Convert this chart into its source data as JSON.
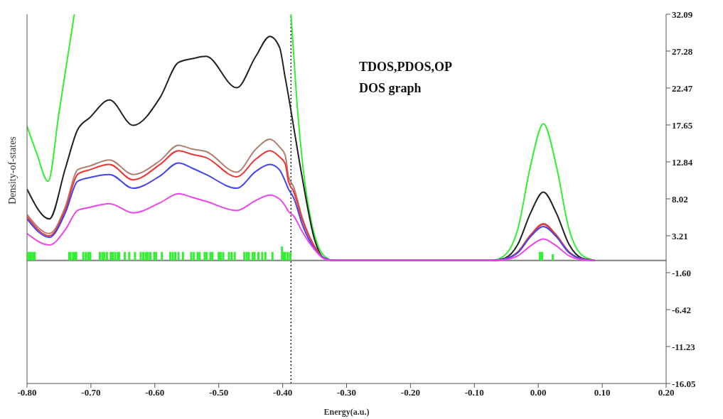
{
  "chart_data": {
    "type": "line",
    "title": "TDOS,PDOS,OP",
    "subtitle": "DOS graph",
    "xlabel": "Energy(a.u.)",
    "ylabel": "Density-of-states",
    "x": [
      -0.8,
      -0.765,
      -0.74,
      -0.721,
      -0.702,
      -0.671,
      -0.634,
      -0.592,
      -0.563,
      -0.541,
      -0.52,
      -0.472,
      -0.442,
      -0.42,
      -0.405,
      -0.396,
      -0.391,
      -0.383,
      -0.369,
      -0.35,
      -0.335,
      -0.32,
      -0.3,
      -0.072,
      -0.052,
      -0.032,
      -0.012,
      0.008,
      0.028,
      0.048,
      0.068,
      0.088
    ],
    "series": [
      {
        "color": "#33ee33",
        "x": [
          -0.8,
          -0.785,
          -0.767,
          -0.75,
          -0.726,
          -0.55,
          -0.387,
          -0.378,
          -0.368,
          -0.355,
          -0.345,
          -0.335,
          -0.32,
          -0.3,
          -0.072,
          -0.052,
          -0.032,
          -0.012,
          0.008,
          0.028,
          0.048,
          0.068,
          0.088
        ],
        "values": [
          17.5,
          14.0,
          10.3,
          19.2,
          32.09,
          null,
          32.09,
          21.0,
          12.0,
          5.0,
          2.0,
          0.6,
          0,
          0,
          0,
          0.7,
          4.1,
          12.4,
          17.8,
          12.4,
          4.1,
          0.7,
          0
        ]
      },
      {
        "color": "#222222",
        "values": [
          9.3,
          5.4,
          12.0,
          17.0,
          18.6,
          20.9,
          17.6,
          21.2,
          25.8,
          26.3,
          26.6,
          22.5,
          26.6,
          29.2,
          27.8,
          23.8,
          21.5,
          17.5,
          10.6,
          2.7,
          0.3,
          0,
          0,
          0,
          0.3,
          2.1,
          6.2,
          8.9,
          6.2,
          2.1,
          0.3,
          0
        ]
      },
      {
        "color": "#b08070",
        "values": [
          6.0,
          3.5,
          7.0,
          11.8,
          12.3,
          13.1,
          11.2,
          13.0,
          15.0,
          14.5,
          14.2,
          11.5,
          14.5,
          15.8,
          14.8,
          13.7,
          11.0,
          9.6,
          5.5,
          1.8,
          0.3,
          0,
          0,
          0,
          0.2,
          1.1,
          3.3,
          4.8,
          3.3,
          1.1,
          0.2,
          0
        ]
      },
      {
        "color": "#ee3333",
        "values": [
          5.7,
          3.2,
          6.6,
          11.2,
          11.8,
          12.5,
          10.5,
          12.5,
          14.3,
          13.8,
          13.4,
          10.9,
          13.2,
          14.3,
          13.5,
          12.6,
          10.3,
          9.0,
          5.2,
          1.8,
          0.3,
          0,
          0,
          0,
          0.2,
          1.1,
          3.3,
          4.7,
          3.3,
          1.1,
          0.2,
          0
        ]
      },
      {
        "color": "#4444ee",
        "values": [
          5.4,
          3.0,
          6.2,
          10.3,
          10.8,
          11.2,
          9.4,
          11.0,
          12.7,
          12.0,
          11.2,
          9.4,
          11.6,
          12.5,
          11.8,
          10.3,
          9.3,
          8.2,
          4.6,
          1.5,
          0.3,
          0,
          0,
          0,
          0.2,
          1.0,
          3.1,
          4.4,
          3.1,
          1.0,
          0.2,
          0
        ]
      },
      {
        "color": "#ee44ee",
        "values": [
          3.5,
          2.0,
          4.0,
          6.5,
          6.9,
          7.4,
          6.2,
          7.5,
          8.7,
          8.2,
          7.7,
          6.5,
          7.8,
          8.5,
          8.0,
          7.1,
          6.4,
          5.8,
          3.7,
          1.4,
          0.2,
          0,
          0,
          0,
          0.1,
          0.6,
          1.9,
          2.8,
          1.9,
          0.6,
          0.1,
          0
        ]
      },
      {
        "type": "bar",
        "color": "#33ee33",
        "x": [
          -0.799,
          -0.796,
          -0.793,
          -0.79,
          -0.788,
          -0.734,
          -0.732,
          -0.728,
          -0.725,
          -0.723,
          -0.712,
          -0.708,
          -0.704,
          -0.701,
          -0.686,
          -0.682,
          -0.679,
          -0.675,
          -0.669,
          -0.666,
          -0.662,
          -0.658,
          -0.656,
          -0.647,
          -0.64,
          -0.631,
          -0.622,
          -0.618,
          -0.614,
          -0.611,
          -0.607,
          -0.601,
          -0.598,
          -0.589,
          -0.576,
          -0.572,
          -0.568,
          -0.563,
          -0.556,
          -0.543,
          -0.539,
          -0.533,
          -0.53,
          -0.522,
          -0.519,
          -0.513,
          -0.51,
          -0.5,
          -0.497,
          -0.493,
          -0.484,
          -0.48,
          -0.475,
          -0.46,
          -0.456,
          -0.453,
          -0.447,
          -0.444,
          -0.438,
          -0.432,
          -0.427,
          -0.416,
          -0.401,
          -0.399,
          -0.396,
          -0.392,
          -0.388,
          0.0025,
          0.006,
          0.0227
        ],
        "values": [
          1.1,
          1.1,
          1.1,
          1.1,
          1.1,
          1.1,
          1.1,
          1.1,
          1.1,
          1.1,
          1.1,
          1.1,
          1.1,
          1.1,
          1.1,
          1.1,
          1.1,
          1.1,
          1.1,
          1.1,
          1.1,
          1.1,
          1.1,
          1.1,
          1.1,
          1.1,
          1.1,
          1.1,
          1.1,
          1.1,
          1.1,
          1.1,
          1.1,
          1.1,
          1.1,
          1.1,
          1.1,
          1.1,
          1.1,
          1.1,
          1.1,
          1.1,
          1.1,
          1.1,
          1.1,
          1.1,
          1.1,
          1.1,
          1.1,
          1.1,
          1.1,
          1.1,
          1.1,
          1.1,
          1.1,
          1.1,
          1.1,
          1.1,
          1.1,
          1.1,
          1.1,
          1.1,
          1.8,
          1.1,
          1.1,
          1.1,
          1.1,
          1.1,
          1.1,
          0.8
        ]
      }
    ],
    "xlim": [
      -0.8,
      0.2
    ],
    "xticks": [
      {
        "value": -0.8,
        "label": "-0.80"
      },
      {
        "value": -0.7,
        "label": "-0.70"
      },
      {
        "value": -0.6,
        "label": "-0.60"
      },
      {
        "value": -0.5,
        "label": "-0.50"
      },
      {
        "value": -0.4,
        "label": "-0.40"
      },
      {
        "value": -0.3,
        "label": "-0.30"
      },
      {
        "value": -0.2,
        "label": "-0.20"
      },
      {
        "value": -0.1,
        "label": "-0.10"
      },
      {
        "value": 0,
        "label": "0.00"
      },
      {
        "value": 0.1,
        "label": "0.10"
      },
      {
        "value": 0.2,
        "label": "0.20"
      }
    ],
    "ylim": [
      -16.05,
      32.09
    ],
    "yticks": [
      32.09,
      27.28,
      22.47,
      17.65,
      12.84,
      8.02,
      3.21,
      {
        "value": -1.6,
        "label": "-1.60"
      },
      -6.42,
      -11.23,
      -16.05
    ],
    "ref_lines": [
      {
        "axis": "x",
        "value": -0.387,
        "color": "#222222",
        "line_style": "dotted"
      },
      {
        "axis": "y",
        "value": 0,
        "color": "#808080",
        "line_style": "solid"
      }
    ],
    "marker": "none"
  }
}
